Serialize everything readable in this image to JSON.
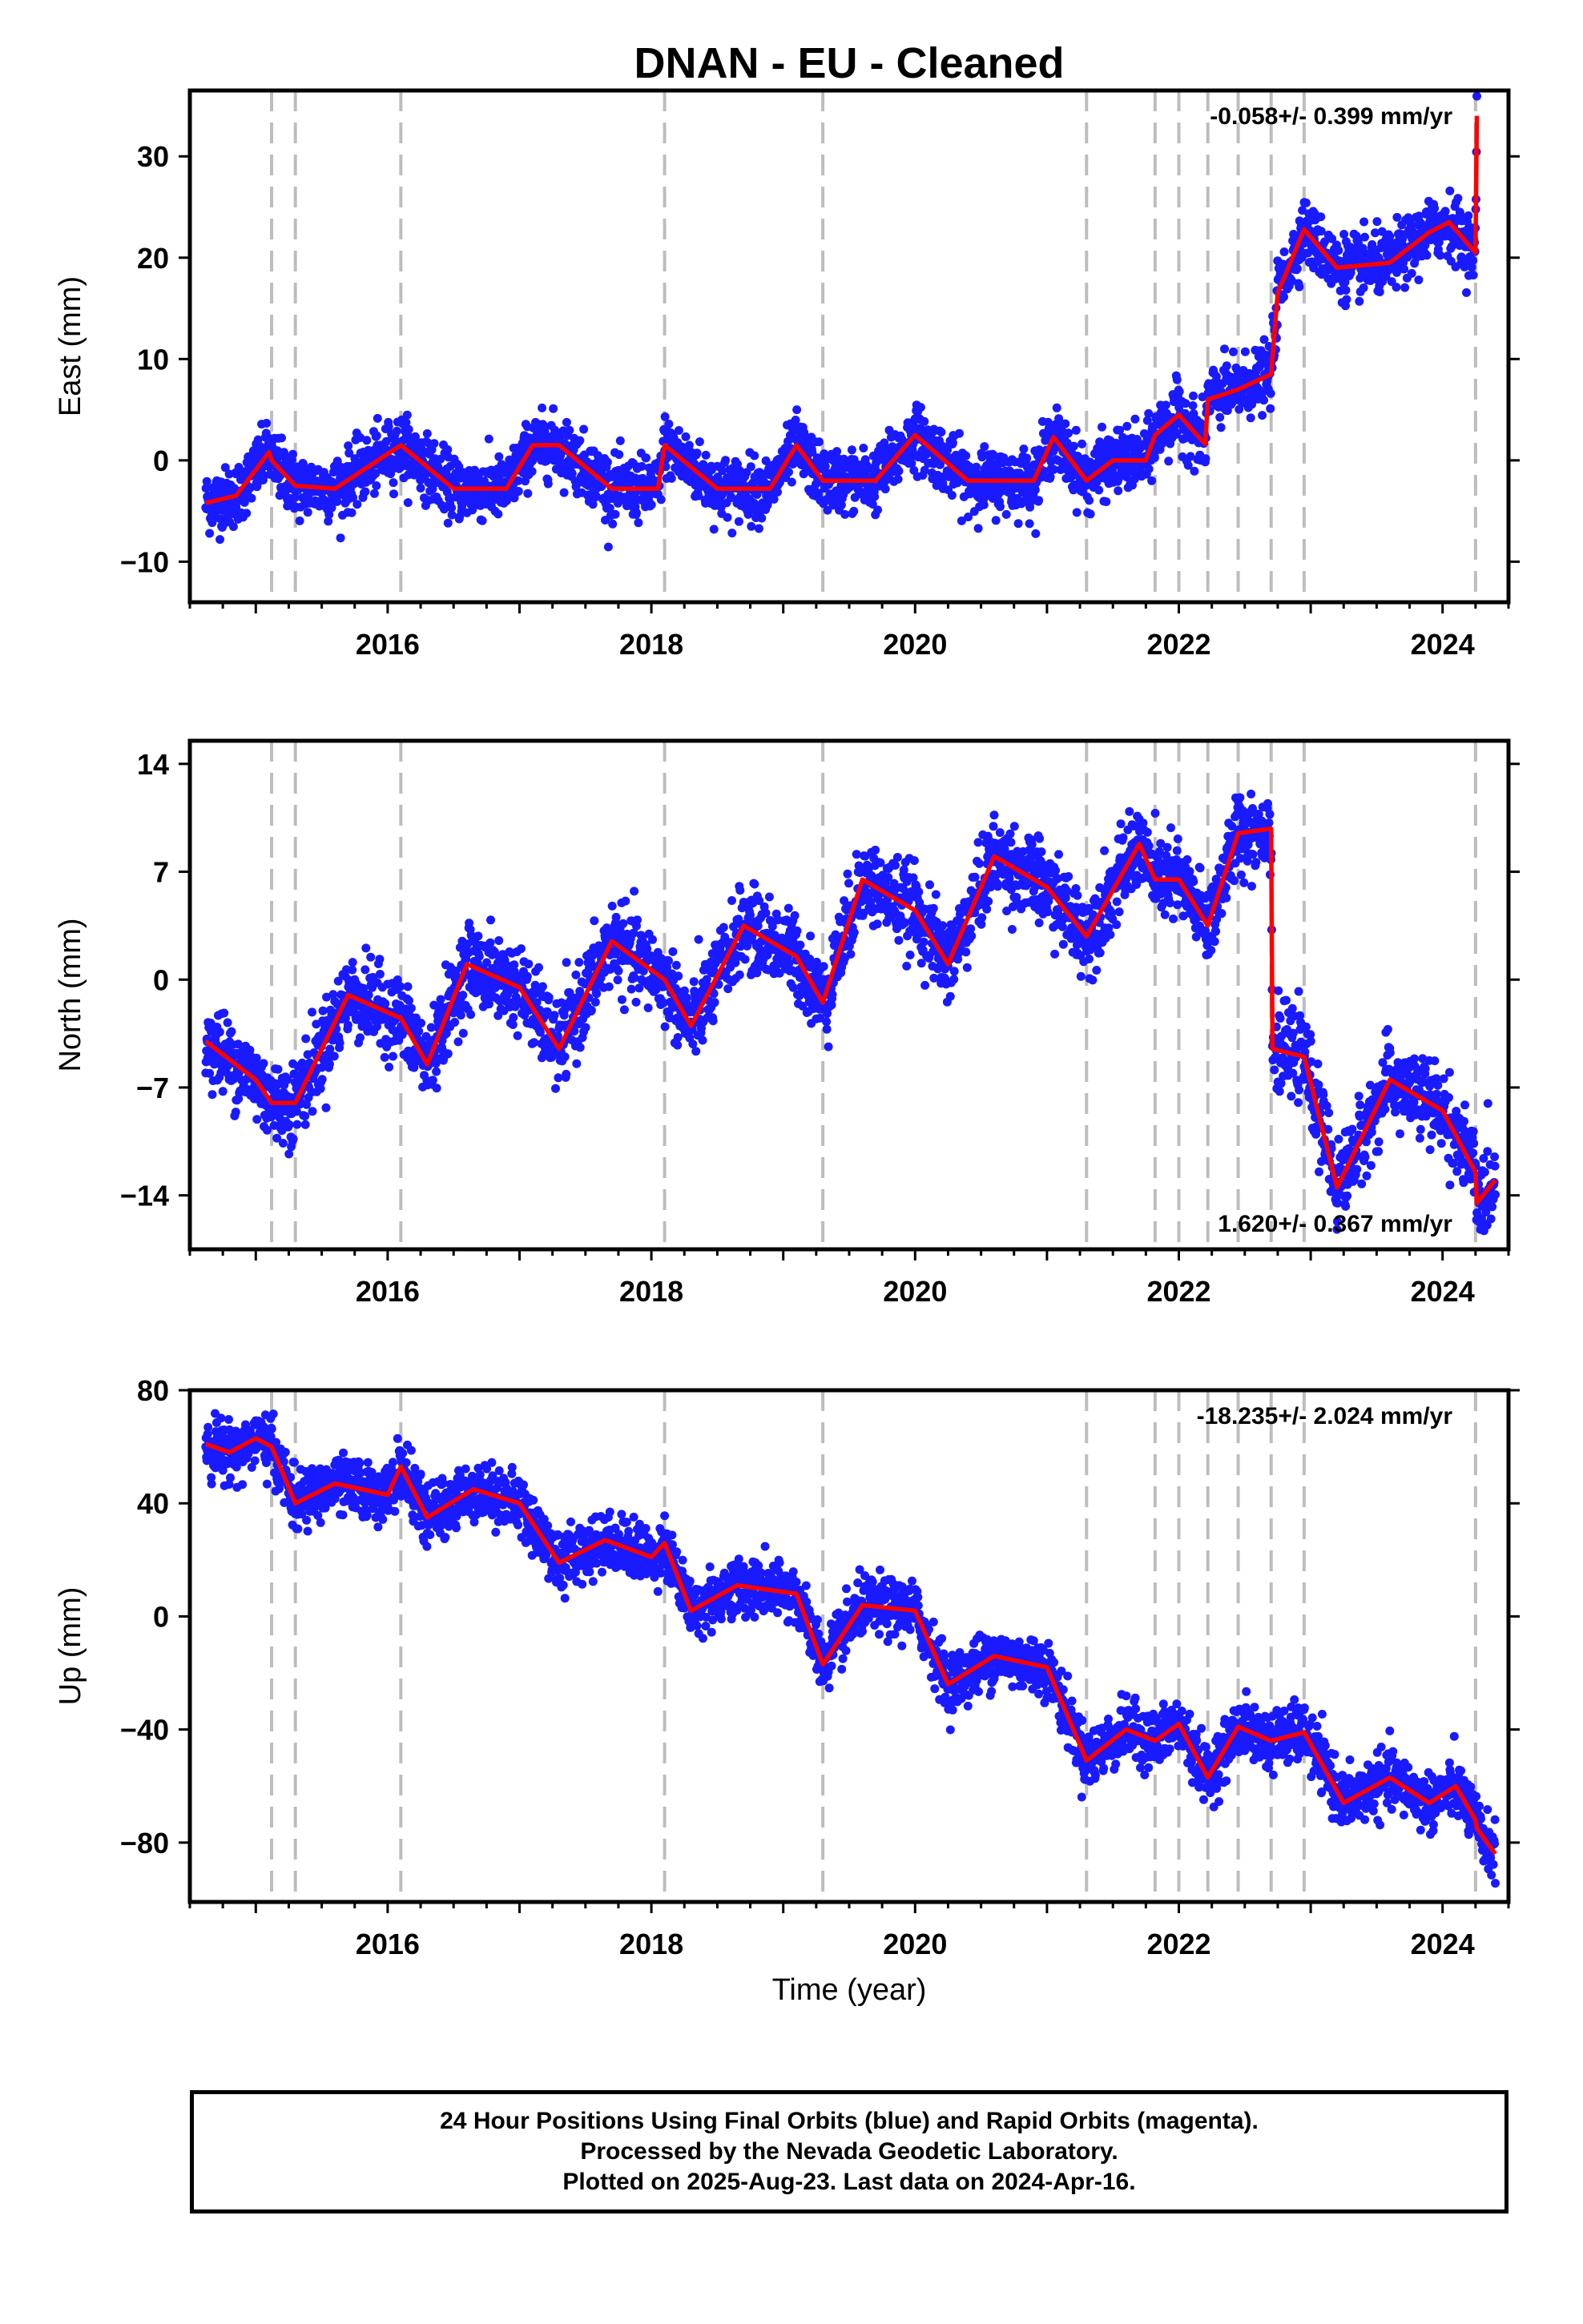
{
  "title": "DNAN  - EU - Cleaned",
  "xlabel": "Time (year)",
  "colors": {
    "points": "#1a1aff",
    "model": "#ff0000",
    "breaks": "#bdbdbd",
    "frame": "#000000"
  },
  "footer": {
    "line1": "24 Hour Positions Using Final Orbits (blue) and Rapid Orbits (magenta).",
    "line2": "Processed by the Nevada Geodetic Laboratory.",
    "line3": "Plotted on 2025-Aug-23. Last data on 2024-Apr-16."
  },
  "chart_data": [
    {
      "type": "scatter",
      "component": "east",
      "ylabel": "East (mm)",
      "rate": "-0.058+/- 0.399 mm/yr",
      "rate_position": "top-right",
      "xlim": [
        2014.5,
        2024.5
      ],
      "ylim": [
        -14,
        36.5
      ],
      "xticks": [
        2016,
        2018,
        2020,
        2022,
        2024
      ],
      "yticks": [
        -10,
        0,
        10,
        20,
        30
      ],
      "ytick_labels": [
        "−10",
        "0",
        "10",
        "20",
        "30"
      ],
      "breaks": [
        2015.12,
        2015.3,
        2016.1,
        2018.1,
        2019.3,
        2021.3,
        2021.82,
        2022.0,
        2022.22,
        2022.45,
        2022.7,
        2022.95,
        2024.25
      ],
      "model": {
        "x": [
          2014.62,
          2014.85,
          2015.1,
          2015.12,
          2015.3,
          2015.6,
          2016.1,
          2016.5,
          2016.9,
          2017.1,
          2017.3,
          2017.7,
          2018.05,
          2018.1,
          2018.5,
          2018.9,
          2019.1,
          2019.3,
          2019.7,
          2020.0,
          2020.4,
          2020.9,
          2021.05,
          2021.3,
          2021.5,
          2021.75,
          2021.82,
          2022.0,
          2022.2,
          2022.22,
          2022.45,
          2022.7,
          2022.75,
          2022.95,
          2023.2,
          2023.6,
          2023.9,
          2024.05,
          2024.25,
          2024.26
        ],
        "y": [
          -4.2,
          -3.5,
          0.8,
          0,
          -2.5,
          -2.8,
          1.5,
          -2.8,
          -2.8,
          1.5,
          1.5,
          -2.8,
          -2.8,
          1.5,
          -2.8,
          -2.8,
          1.5,
          -2.0,
          -2.0,
          2.5,
          -2.0,
          -2.0,
          2.3,
          -2.0,
          0.0,
          0.0,
          2.5,
          4.5,
          1.6,
          6.0,
          7.0,
          8.5,
          16.5,
          22.8,
          19.0,
          19.5,
          22.5,
          23.5,
          20.5,
          34.0
        ]
      },
      "points": {
        "approx_count": 3300,
        "scatter_sd_mm": 1.5
      }
    },
    {
      "type": "scatter",
      "component": "north",
      "ylabel": "North (mm)",
      "rate": "1.620+/- 0.367 mm/yr",
      "rate_position": "bottom-right",
      "xlim": [
        2014.5,
        2024.5
      ],
      "ylim": [
        -17.5,
        15.5
      ],
      "xticks": [
        2016,
        2018,
        2020,
        2022,
        2024
      ],
      "yticks": [
        -14,
        -7,
        0,
        7,
        14
      ],
      "ytick_labels": [
        "−14",
        "−7",
        "0",
        "7",
        "14"
      ],
      "breaks": [
        2015.12,
        2015.3,
        2016.1,
        2018.1,
        2019.3,
        2021.3,
        2021.82,
        2022.0,
        2022.22,
        2022.45,
        2022.7,
        2022.95,
        2024.25
      ],
      "model": {
        "x": [
          2014.62,
          2015.0,
          2015.12,
          2015.3,
          2015.7,
          2016.1,
          2016.3,
          2016.6,
          2017.0,
          2017.3,
          2017.7,
          2018.1,
          2018.3,
          2018.7,
          2019.1,
          2019.3,
          2019.6,
          2020.0,
          2020.25,
          2020.6,
          2021.0,
          2021.3,
          2021.7,
          2021.82,
          2022.0,
          2022.22,
          2022.45,
          2022.7,
          2022.71,
          2022.95,
          2023.2,
          2023.6,
          2024.0,
          2024.25,
          2024.26,
          2024.4
        ],
        "y": [
          -4.0,
          -6.5,
          -8.0,
          -8.0,
          -1.0,
          -2.5,
          -5.5,
          1.0,
          -0.5,
          -4.5,
          2.5,
          0.0,
          -3.0,
          3.5,
          1.5,
          -1.5,
          6.5,
          4.5,
          1.0,
          8.0,
          6.0,
          2.8,
          8.8,
          6.5,
          6.5,
          3.5,
          9.5,
          9.8,
          -4.5,
          -5.0,
          -13.5,
          -6.5,
          -8.5,
          -12.5,
          -14.5,
          -13.0
        ]
      },
      "points": {
        "approx_count": 3300,
        "scatter_sd_mm": 1.3
      }
    },
    {
      "type": "scatter",
      "component": "up",
      "ylabel": "Up (mm)",
      "rate": "-18.235+/- 2.024 mm/yr",
      "rate_position": "top-right",
      "xlim": [
        2014.5,
        2024.5
      ],
      "ylim": [
        -101,
        80
      ],
      "xticks": [
        2016,
        2018,
        2020,
        2022,
        2024
      ],
      "yticks": [
        -80,
        -40,
        0,
        40,
        80
      ],
      "ytick_labels": [
        "−80",
        "−40",
        "0",
        "40",
        "80"
      ],
      "breaks": [
        2015.12,
        2015.3,
        2016.1,
        2018.1,
        2019.3,
        2021.3,
        2021.82,
        2022.0,
        2022.22,
        2022.45,
        2022.7,
        2022.95,
        2024.25
      ],
      "model": {
        "x": [
          2014.62,
          2014.8,
          2015.0,
          2015.12,
          2015.3,
          2015.6,
          2016.0,
          2016.1,
          2016.3,
          2016.65,
          2017.0,
          2017.3,
          2017.65,
          2018.0,
          2018.1,
          2018.3,
          2018.65,
          2019.1,
          2019.3,
          2019.6,
          2020.0,
          2020.25,
          2020.6,
          2021.0,
          2021.3,
          2021.6,
          2021.82,
          2022.0,
          2022.22,
          2022.45,
          2022.7,
          2022.95,
          2023.25,
          2023.6,
          2023.9,
          2024.1,
          2024.25,
          2024.26,
          2024.4
        ],
        "y": [
          61,
          58,
          63,
          60,
          40,
          47,
          43,
          53,
          35,
          45,
          40,
          19,
          27,
          21,
          26,
          2,
          11,
          8,
          -17,
          4,
          2,
          -24,
          -14,
          -18,
          -51,
          -40,
          -44,
          -38,
          -57,
          -39,
          -44,
          -41,
          -66,
          -57,
          -66,
          -60,
          -72,
          -75,
          -84
        ]
      },
      "points": {
        "approx_count": 3300,
        "scatter_sd_mm": 5
      }
    }
  ]
}
